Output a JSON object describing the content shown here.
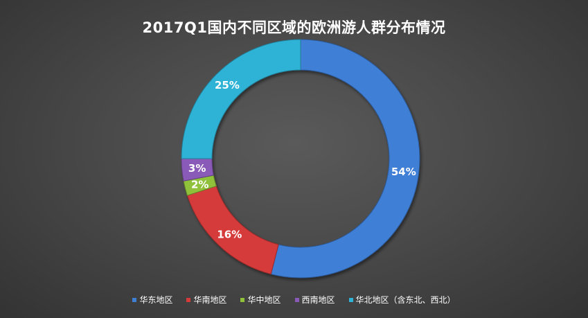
{
  "chart_data": {
    "type": "pie",
    "title": "2017Q1国内不同区域的欧洲游人群分布情况",
    "series": [
      {
        "name": "华东地区",
        "value": 54,
        "label": "54%",
        "color": "#3f7fd6"
      },
      {
        "name": "华南地区",
        "value": 16,
        "label": "16%",
        "color": "#d63b3b"
      },
      {
        "name": "华中地区",
        "value": 2,
        "label": "2%",
        "color": "#8fc13a"
      },
      {
        "name": "西南地区",
        "value": 3,
        "label": "3%",
        "color": "#8a5ab8"
      },
      {
        "name": "华北地区（含东北、西北）",
        "value": 25,
        "label": "25%",
        "color": "#2fb3d6"
      }
    ],
    "legend_position": "bottom"
  }
}
